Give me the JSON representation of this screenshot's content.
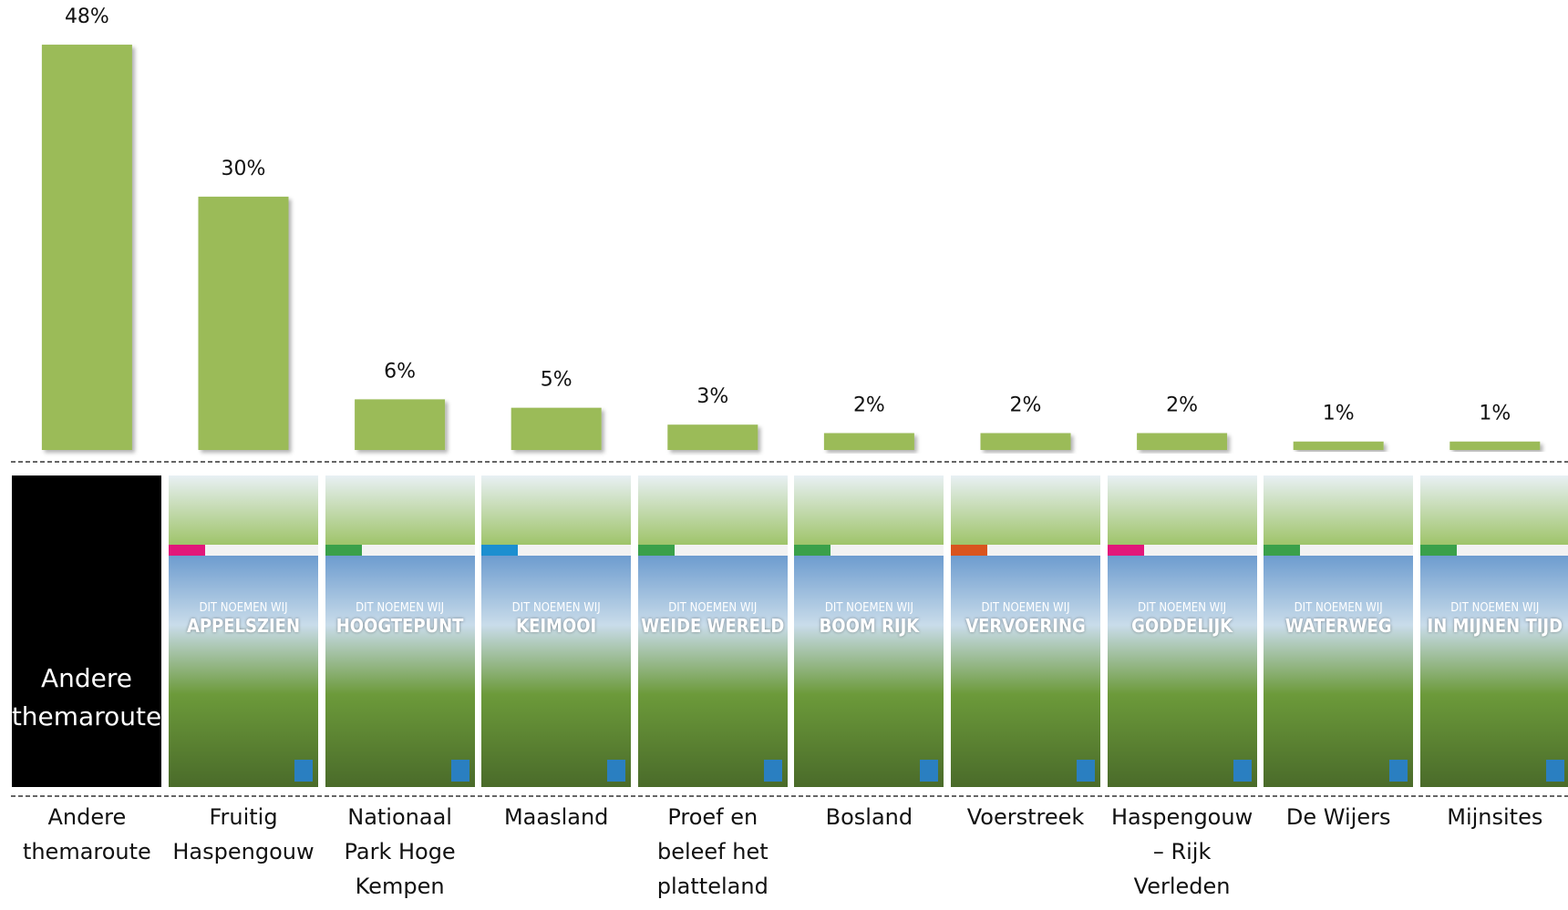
{
  "chart_data": {
    "type": "bar",
    "categories": [
      "Andere themaroute",
      "Fruitig Haspengouw",
      "Nationaal Park Hoge Kempen",
      "Maasland",
      "Proef en beleef het platteland",
      "Bosland",
      "Voerstreek",
      "Haspengouw – Rijk Verleden",
      "De Wijers",
      "Mijnsites"
    ],
    "values": [
      48,
      30,
      6,
      5,
      3,
      2,
      2,
      2,
      1,
      1
    ],
    "value_labels": [
      "48%",
      "30%",
      "6%",
      "5%",
      "3%",
      "2%",
      "2%",
      "2%",
      "1%",
      "1%"
    ],
    "color": "#9bbb59"
  },
  "placeholder_label": "Andere themaroute",
  "posters": [
    {
      "intro": "DIT NOEMEN WIJ",
      "headline": "APPELSZIEN"
    },
    {
      "intro": "DIT NOEMEN WIJ",
      "headline": "HOOGTEPUNT"
    },
    {
      "intro": "DIT NOEMEN WIJ",
      "headline": "KEIMOOI"
    },
    {
      "intro": "DIT NOEMEN WIJ",
      "headline": "WEIDE WERELD"
    },
    {
      "intro": "DIT NOEMEN WIJ",
      "headline": "BOOM RIJK"
    },
    {
      "intro": "DIT NOEMEN WIJ",
      "headline": "VERVOERING"
    },
    {
      "intro": "DIT NOEMEN WIJ",
      "headline": "GODDELIJK"
    },
    {
      "intro": "DIT NOEMEN WIJ",
      "headline": "WATERWEG"
    },
    {
      "intro": "DIT NOEMEN WIJ",
      "headline": "IN MIJNEN TIJD"
    }
  ]
}
